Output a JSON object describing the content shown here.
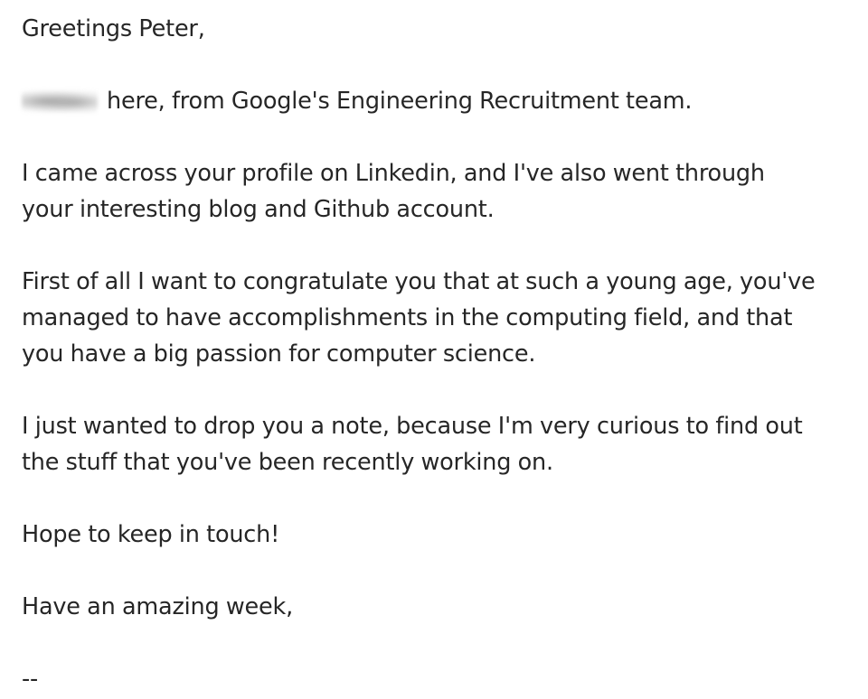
{
  "email": {
    "greeting": "Greetings Peter,",
    "intro_suffix": "here, from Google's Engineering Recruitment team.",
    "paragraph_1": [
      "I came across your profile on Linkedin, and I've also went through",
      "your interesting blog and Github account."
    ],
    "paragraph_2": [
      "First of all I want to congratulate you that at such a young age, you've",
      "managed to have accomplishments in the computing field, and that",
      "you have a big passion for computer science."
    ],
    "paragraph_3": [
      "I just wanted to drop you a note, because I'm very curious to find out",
      "the stuff that you've been recently working on."
    ],
    "closing_1": "Hope to keep in touch!",
    "closing_2": "Have an amazing week,",
    "signature_separator": "--"
  }
}
